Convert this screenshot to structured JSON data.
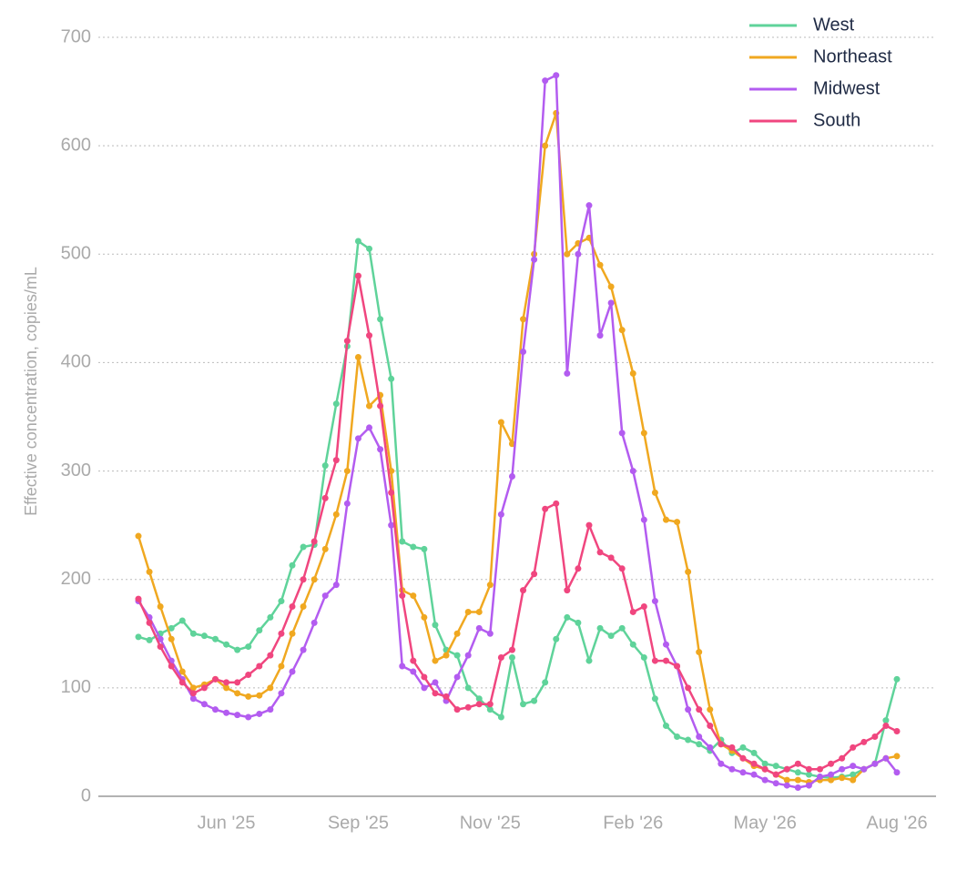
{
  "chart_data": {
    "type": "line",
    "ylabel": "Effective concentration, copies/mL",
    "categories": [
      null,
      null,
      null,
      null,
      null,
      null,
      null,
      null,
      "Jun '25",
      null,
      null,
      null,
      null,
      null,
      null,
      null,
      null,
      null,
      null,
      null,
      "Sep '25",
      null,
      null,
      null,
      null,
      null,
      null,
      null,
      null,
      null,
      null,
      null,
      "Nov '25",
      null,
      null,
      null,
      null,
      null,
      null,
      null,
      null,
      null,
      null,
      null,
      null,
      "Feb '26",
      null,
      null,
      null,
      null,
      null,
      null,
      null,
      null,
      null,
      null,
      null,
      "May '26",
      null,
      null,
      null,
      null,
      null,
      null,
      null,
      null,
      null,
      null,
      null,
      "Aug '26"
    ],
    "series": [
      {
        "name": "West",
        "color": "#5fd39a",
        "values": [
          147,
          144,
          150,
          155,
          162,
          150,
          148,
          145,
          140,
          135,
          138,
          153,
          165,
          180,
          213,
          230,
          232,
          305,
          362,
          415,
          512,
          505,
          440,
          385,
          235,
          230,
          228,
          158,
          135,
          130,
          100,
          90,
          80,
          73,
          128,
          85,
          88,
          105,
          145,
          165,
          160,
          125,
          155,
          148,
          155,
          140,
          128,
          90,
          65,
          55,
          52,
          48,
          42,
          52,
          40,
          45,
          40,
          30,
          28,
          25,
          22,
          20,
          18,
          17,
          18,
          20,
          25,
          30,
          70,
          108
        ]
      },
      {
        "name": "Northeast",
        "color": "#f0a820",
        "values": [
          240,
          207,
          175,
          145,
          115,
          100,
          103,
          108,
          100,
          95,
          92,
          93,
          100,
          120,
          150,
          175,
          200,
          228,
          260,
          300,
          405,
          360,
          370,
          300,
          190,
          185,
          165,
          125,
          130,
          150,
          170,
          170,
          195,
          345,
          325,
          440,
          500,
          600,
          630,
          500,
          510,
          515,
          490,
          470,
          430,
          390,
          335,
          280,
          255,
          253,
          207,
          133,
          80,
          48,
          42,
          35,
          28,
          25,
          20,
          15,
          15,
          13,
          15,
          15,
          17,
          15,
          25,
          30,
          35,
          37
        ]
      },
      {
        "name": "Midwest",
        "color": "#b35cf0",
        "values": [
          180,
          165,
          145,
          125,
          108,
          90,
          85,
          80,
          77,
          75,
          73,
          76,
          80,
          95,
          115,
          135,
          160,
          185,
          195,
          270,
          330,
          340,
          320,
          250,
          120,
          115,
          100,
          105,
          88,
          110,
          130,
          155,
          150,
          260,
          295,
          410,
          495,
          660,
          665,
          390,
          500,
          545,
          425,
          455,
          335,
          300,
          255,
          180,
          140,
          120,
          80,
          55,
          45,
          30,
          25,
          22,
          20,
          15,
          12,
          10,
          8,
          10,
          18,
          20,
          25,
          28,
          25,
          30,
          35,
          22
        ]
      },
      {
        "name": "South",
        "color": "#f0467f",
        "values": [
          182,
          160,
          138,
          120,
          105,
          95,
          100,
          108,
          105,
          105,
          112,
          120,
          130,
          150,
          175,
          200,
          235,
          275,
          310,
          420,
          480,
          425,
          360,
          280,
          185,
          125,
          110,
          95,
          92,
          80,
          82,
          85,
          85,
          128,
          135,
          190,
          205,
          265,
          270,
          190,
          210,
          250,
          225,
          220,
          210,
          170,
          175,
          125,
          125,
          120,
          100,
          80,
          65,
          48,
          45,
          35,
          30,
          25,
          20,
          25,
          30,
          25,
          25,
          30,
          35,
          45,
          50,
          55,
          65,
          60
        ]
      }
    ],
    "ylim": [
      0,
      700
    ],
    "yticks": [
      0,
      100,
      200,
      300,
      400,
      500,
      600,
      700
    ],
    "grid": true
  }
}
